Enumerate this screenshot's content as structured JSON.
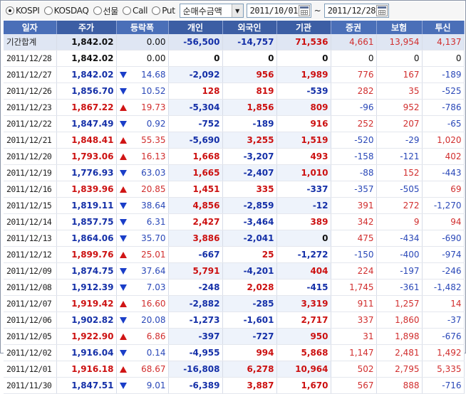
{
  "toolbar": {
    "markets": [
      {
        "label": "KOSPI",
        "selected": true
      },
      {
        "label": "KOSDAQ",
        "selected": false
      },
      {
        "label": "선물",
        "selected": false
      },
      {
        "label": "Call",
        "selected": false
      },
      {
        "label": "Put",
        "selected": false
      }
    ],
    "mode": "순매수금액",
    "date_from": "2011/10/01",
    "separator": "~",
    "date_to": "2011/12/28"
  },
  "table": {
    "headers": [
      "일자",
      "주가",
      "등락폭",
      "개인",
      "외국인",
      "기관",
      "증권",
      "보험",
      "투신"
    ],
    "total": {
      "date": "기간합계",
      "price": "1,842.02",
      "change": "0.00",
      "dir": "none",
      "indiv": "-56,500",
      "foreign": "-14,757",
      "inst": "71,536",
      "sec": "4,661",
      "ins": "13,954",
      "trust": "4,137"
    },
    "rows": [
      {
        "date": "2011/12/28",
        "price": "1,842.02",
        "change": "0.00",
        "dir": "none",
        "indiv": "0",
        "foreign": "0",
        "inst": "0",
        "sec": "0",
        "ins": "0",
        "trust": "0"
      },
      {
        "date": "2011/12/27",
        "price": "1,842.02",
        "change": "14.68",
        "dir": "down",
        "indiv": "-2,092",
        "foreign": "956",
        "inst": "1,989",
        "sec": "776",
        "ins": "167",
        "trust": "-189"
      },
      {
        "date": "2011/12/26",
        "price": "1,856.70",
        "change": "10.52",
        "dir": "down",
        "indiv": "128",
        "foreign": "819",
        "inst": "-539",
        "sec": "282",
        "ins": "35",
        "trust": "-525"
      },
      {
        "date": "2011/12/23",
        "price": "1,867.22",
        "change": "19.73",
        "dir": "up",
        "indiv": "-5,304",
        "foreign": "1,856",
        "inst": "809",
        "sec": "-96",
        "ins": "952",
        "trust": "-786"
      },
      {
        "date": "2011/12/22",
        "price": "1,847.49",
        "change": "0.92",
        "dir": "down",
        "indiv": "-752",
        "foreign": "-189",
        "inst": "916",
        "sec": "252",
        "ins": "207",
        "trust": "-65"
      },
      {
        "date": "2011/12/21",
        "price": "1,848.41",
        "change": "55.35",
        "dir": "up",
        "indiv": "-5,690",
        "foreign": "3,255",
        "inst": "1,519",
        "sec": "-520",
        "ins": "-29",
        "trust": "1,020"
      },
      {
        "date": "2011/12/20",
        "price": "1,793.06",
        "change": "16.13",
        "dir": "up",
        "indiv": "1,668",
        "foreign": "-3,207",
        "inst": "493",
        "sec": "-158",
        "ins": "-121",
        "trust": "402"
      },
      {
        "date": "2011/12/19",
        "price": "1,776.93",
        "change": "63.03",
        "dir": "down",
        "indiv": "1,665",
        "foreign": "-2,407",
        "inst": "1,010",
        "sec": "-88",
        "ins": "152",
        "trust": "-443"
      },
      {
        "date": "2011/12/16",
        "price": "1,839.96",
        "change": "20.85",
        "dir": "up",
        "indiv": "1,451",
        "foreign": "335",
        "inst": "-337",
        "sec": "-357",
        "ins": "-505",
        "trust": "69"
      },
      {
        "date": "2011/12/15",
        "price": "1,819.11",
        "change": "38.64",
        "dir": "down",
        "indiv": "4,856",
        "foreign": "-2,859",
        "inst": "-12",
        "sec": "391",
        "ins": "272",
        "trust": "-1,270"
      },
      {
        "date": "2011/12/14",
        "price": "1,857.75",
        "change": "6.31",
        "dir": "down",
        "indiv": "2,427",
        "foreign": "-3,464",
        "inst": "389",
        "sec": "342",
        "ins": "9",
        "trust": "94"
      },
      {
        "date": "2011/12/13",
        "price": "1,864.06",
        "change": "35.70",
        "dir": "down",
        "indiv": "3,886",
        "foreign": "-2,041",
        "inst": "0",
        "sec": "475",
        "ins": "-434",
        "trust": "-690"
      },
      {
        "date": "2011/12/12",
        "price": "1,899.76",
        "change": "25.01",
        "dir": "up",
        "indiv": "-667",
        "foreign": "25",
        "inst": "-1,272",
        "sec": "-150",
        "ins": "-400",
        "trust": "-974"
      },
      {
        "date": "2011/12/09",
        "price": "1,874.75",
        "change": "37.64",
        "dir": "down",
        "indiv": "5,791",
        "foreign": "-4,201",
        "inst": "404",
        "sec": "224",
        "ins": "-197",
        "trust": "-246"
      },
      {
        "date": "2011/12/08",
        "price": "1,912.39",
        "change": "7.03",
        "dir": "down",
        "indiv": "-248",
        "foreign": "2,028",
        "inst": "-415",
        "sec": "1,745",
        "ins": "-361",
        "trust": "-1,482"
      },
      {
        "date": "2011/12/07",
        "price": "1,919.42",
        "change": "16.60",
        "dir": "up",
        "indiv": "-2,882",
        "foreign": "-285",
        "inst": "3,319",
        "sec": "911",
        "ins": "1,257",
        "trust": "14"
      },
      {
        "date": "2011/12/06",
        "price": "1,902.82",
        "change": "20.08",
        "dir": "down",
        "indiv": "-1,273",
        "foreign": "-1,601",
        "inst": "2,717",
        "sec": "337",
        "ins": "1,860",
        "trust": "-37"
      },
      {
        "date": "2011/12/05",
        "price": "1,922.90",
        "change": "6.86",
        "dir": "up",
        "indiv": "-397",
        "foreign": "-727",
        "inst": "950",
        "sec": "31",
        "ins": "1,898",
        "trust": "-676"
      },
      {
        "date": "2011/12/02",
        "price": "1,916.04",
        "change": "0.14",
        "dir": "down",
        "indiv": "-4,955",
        "foreign": "994",
        "inst": "5,868",
        "sec": "1,147",
        "ins": "2,481",
        "trust": "1,492"
      },
      {
        "date": "2011/12/01",
        "price": "1,916.18",
        "change": "68.67",
        "dir": "up",
        "indiv": "-16,808",
        "foreign": "6,278",
        "inst": "10,964",
        "sec": "502",
        "ins": "2,795",
        "trust": "5,335"
      },
      {
        "date": "2011/11/30",
        "price": "1,847.51",
        "change": "9.01",
        "dir": "down",
        "indiv": "-6,389",
        "foreign": "3,887",
        "inst": "1,670",
        "sec": "567",
        "ins": "888",
        "trust": "-716"
      }
    ]
  },
  "colors": {
    "header_bg": "#4a6fb8",
    "total_bg": "#dfe6f3",
    "up": "#cc1111",
    "down": "#1530a8"
  }
}
